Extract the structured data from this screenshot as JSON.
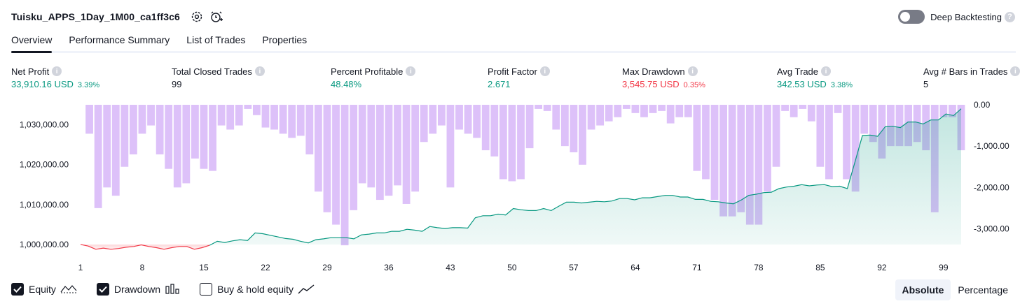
{
  "header": {
    "strategy_name": "Tuisku_APPS_1Day_1M00_ca1ff3c6",
    "deep_backtesting_label": "Deep Backtesting",
    "deep_backtesting_enabled": false
  },
  "tabs": [
    {
      "label": "Overview",
      "active": true
    },
    {
      "label": "Performance Summary",
      "active": false
    },
    {
      "label": "List of Trades",
      "active": false
    },
    {
      "label": "Properties",
      "active": false
    }
  ],
  "metrics": [
    {
      "label": "Net Profit",
      "value": "33,910.16 USD",
      "pct": "3.39%",
      "tone": "pos"
    },
    {
      "label": "Total Closed Trades",
      "value": "99",
      "pct": "",
      "tone": "neu"
    },
    {
      "label": "Percent Profitable",
      "value": "48.48%",
      "pct": "",
      "tone": "pos"
    },
    {
      "label": "Profit Factor",
      "value": "2.671",
      "pct": "",
      "tone": "pos"
    },
    {
      "label": "Max Drawdown",
      "value": "3,545.75 USD",
      "pct": "0.35%",
      "tone": "neg"
    },
    {
      "label": "Avg Trade",
      "value": "342.53 USD",
      "pct": "3.38%",
      "tone": "pos"
    },
    {
      "label": "Avg # Bars in Trades",
      "value": "5",
      "pct": "",
      "tone": "neu"
    }
  ],
  "chart_data": {
    "type": "line",
    "x_ticks": [
      "1",
      "8",
      "15",
      "22",
      "29",
      "36",
      "43",
      "50",
      "57",
      "64",
      "71",
      "78",
      "85",
      "92",
      "99"
    ],
    "left_axis": {
      "ticks": [
        "1,000,000.00",
        "1,010,000.00",
        "1,020,000.00",
        "1,030,000.00"
      ],
      "ylim": [
        996000,
        1035000
      ]
    },
    "right_axis": {
      "ticks": [
        "0.00",
        "-1,000.00",
        "-2,000.00",
        "-3,000.00"
      ],
      "ylim": [
        -3550,
        0
      ]
    },
    "series": [
      {
        "name": "Equity",
        "axis": "left",
        "style": "line-area",
        "color_up": "#089981",
        "color_down": "#f23645",
        "values": [
          1000000,
          999600,
          998800,
          999100,
          998800,
          999000,
          999300,
          999500,
          999900,
          999500,
          999200,
          998800,
          999200,
          999500,
          999500,
          998800,
          999200,
          999800,
          1000800,
          1000500,
          1000900,
          1001200,
          1001000,
          1002900,
          1002700,
          1002300,
          1001900,
          1001500,
          1001300,
          1000800,
          1000400,
          1001200,
          1001400,
          1001700,
          1001700,
          1001700,
          1001400,
          1002400,
          1002600,
          1002900,
          1002900,
          1003300,
          1003300,
          1003800,
          1003600,
          1003300,
          1004500,
          1004200,
          1004000,
          1004200,
          1004200,
          1004100,
          1006700,
          1007200,
          1007200,
          1007600,
          1007400,
          1009000,
          1008700,
          1008500,
          1008500,
          1009000,
          1008500,
          1009600,
          1010600,
          1010600,
          1010400,
          1010600,
          1010800,
          1010700,
          1010900,
          1011500,
          1011500,
          1011200,
          1011700,
          1011700,
          1012000,
          1012300,
          1012300,
          1011900,
          1011900,
          1011300,
          1011300,
          1010800,
          1010700,
          1010400,
          1010200,
          1011100,
          1012300,
          1012600,
          1013000,
          1013100,
          1014000,
          1014400,
          1014600,
          1015000,
          1014700,
          1014900,
          1015000,
          1014500,
          1014600,
          1014000,
          1020600,
          1027300,
          1027400,
          1027100,
          1029500,
          1029600,
          1029300,
          1030700,
          1030700,
          1030200,
          1031200,
          1031200,
          1032700,
          1032300,
          1034000
        ]
      },
      {
        "name": "Drawdown",
        "axis": "right",
        "style": "bars",
        "color": "#d7b6f8",
        "values": [
          0,
          -700,
          -2500,
          -2000,
          -2200,
          -1500,
          -1200,
          -700,
          -500,
          -1200,
          -1550,
          -2000,
          -1900,
          -1300,
          -1550,
          -1600,
          -500,
          -600,
          -500,
          -100,
          -250,
          -550,
          -600,
          -700,
          -800,
          -750,
          -1200,
          -2100,
          -2600,
          -2900,
          -3400,
          -2550,
          -1900,
          -2000,
          -2300,
          -2200,
          -1950,
          -2400,
          -2100,
          -900,
          -700,
          -500,
          -2000,
          -600,
          -700,
          -800,
          -1100,
          -1250,
          -1800,
          -1850,
          -1800,
          -1050,
          -100,
          -150,
          -600,
          -1000,
          -1150,
          -1450,
          -600,
          -500,
          -400,
          -300,
          -100,
          -200,
          -300,
          -200,
          -150,
          -450,
          -300,
          -300,
          -1600,
          -1800,
          -2300,
          -2700,
          -2700,
          -2600,
          -2900,
          -2900,
          -2100,
          -1500,
          -150,
          -300,
          -100,
          -400,
          -1500,
          -1800,
          -200,
          -1800,
          -2100,
          -700,
          -900,
          -1300,
          -1000,
          -1000,
          -1000,
          -900,
          -1100,
          -2600,
          -300,
          -300,
          -1100
        ]
      }
    ]
  },
  "legend": [
    {
      "label": "Equity",
      "checked": true,
      "icon": "equity-line-icon"
    },
    {
      "label": "Drawdown",
      "checked": true,
      "icon": "drawdown-bars-icon"
    },
    {
      "label": "Buy & hold equity",
      "checked": false,
      "icon": "buy-hold-line-icon"
    }
  ],
  "view_toggle": {
    "absolute": "Absolute",
    "percentage": "Percentage",
    "selected": "absolute"
  }
}
